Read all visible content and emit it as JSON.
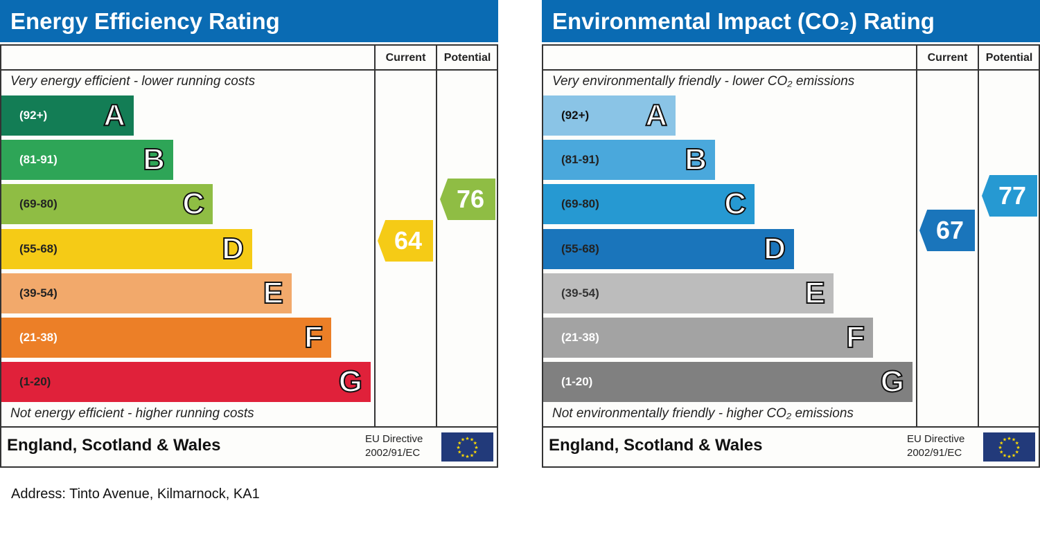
{
  "chart_data": [
    {
      "type": "bar",
      "title": "Energy Efficiency Rating",
      "columns": [
        "Current",
        "Potential"
      ],
      "top_note": "Very energy efficient - lower running costs",
      "bottom_note": "Not energy efficient - higher running costs",
      "bands": [
        {
          "letter": "A",
          "range": "(92+)",
          "color": "#137d55",
          "text": "#fff"
        },
        {
          "letter": "B",
          "range": "(81-91)",
          "color": "#2ea557",
          "text": "#fff"
        },
        {
          "letter": "C",
          "range": "(69-80)",
          "color": "#8fbd44",
          "text": "#222"
        },
        {
          "letter": "D",
          "range": "(55-68)",
          "color": "#f5cb16",
          "text": "#222"
        },
        {
          "letter": "E",
          "range": "(39-54)",
          "color": "#f2a96b",
          "text": "#222"
        },
        {
          "letter": "F",
          "range": "(21-38)",
          "color": "#ec7f27",
          "text": "#fff"
        },
        {
          "letter": "G",
          "range": "(1-20)",
          "color": "#e0213a",
          "text": "#222"
        }
      ],
      "current": {
        "value": "64",
        "color": "#f5cb16"
      },
      "potential": {
        "value": "76",
        "color": "#8fbd44"
      },
      "footer": "England, Scotland & Wales",
      "directive": [
        "EU Directive",
        "2002/91/EC"
      ]
    },
    {
      "type": "bar",
      "title": "Environmental Impact (CO₂) Rating",
      "columns": [
        "Current",
        "Potential"
      ],
      "top_note": "Very environmentally friendly - lower CO₂ emissions",
      "bottom_note": "Not environmentally friendly - higher CO₂ emissions",
      "bands": [
        {
          "letter": "A",
          "range": "(92+)",
          "color": "#8ac4e6",
          "text": "#111"
        },
        {
          "letter": "B",
          "range": "(81-91)",
          "color": "#4aa8dc",
          "text": "#222"
        },
        {
          "letter": "C",
          "range": "(69-80)",
          "color": "#2699d2",
          "text": "#222"
        },
        {
          "letter": "D",
          "range": "(55-68)",
          "color": "#1a75bb",
          "text": "#222"
        },
        {
          "letter": "E",
          "range": "(39-54)",
          "color": "#bcbcbc",
          "text": "#333"
        },
        {
          "letter": "F",
          "range": "(21-38)",
          "color": "#a3a3a3",
          "text": "#fff"
        },
        {
          "letter": "G",
          "range": "(1-20)",
          "color": "#808080",
          "text": "#fff"
        }
      ],
      "current": {
        "value": "67",
        "color": "#1a75bb"
      },
      "potential": {
        "value": "77",
        "color": "#2699d2"
      },
      "footer": "England, Scotland & Wales",
      "directive": [
        "EU Directive",
        "2002/91/EC"
      ]
    }
  ],
  "address": "Address: Tinto Avenue, Kilmarnock, KA1"
}
